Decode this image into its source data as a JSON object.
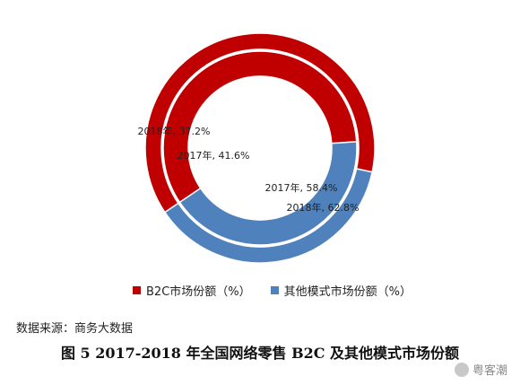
{
  "chart_data": {
    "type": "pie",
    "variant": "concentric-donut",
    "categories": [
      "B2C市场份额（%）",
      "其他模式市场份额（%）"
    ],
    "rings": [
      {
        "name": "2017",
        "position": "inner",
        "values": [
          58.4,
          41.6
        ],
        "labels": [
          "2017年, 58.4%",
          "2017年, 41.6%"
        ]
      },
      {
        "name": "2018",
        "position": "outer",
        "values": [
          62.8,
          37.2
        ],
        "labels": [
          "2018年, 62.8%",
          "2018年, 37.2%"
        ]
      }
    ],
    "colors": [
      "#c00000",
      "#4f81bd"
    ],
    "legend_position": "bottom"
  },
  "legend": {
    "b2c": "B2C市场份额（%）",
    "other": "其他模式市场份额（%）"
  },
  "source_text": "数据来源：商务大数据",
  "caption": "图 5 2017-2018 年全国网络零售 B2C 及其他模式市场份额",
  "watermark": {
    "text": "粤客潮",
    "icon": "wechat-icon"
  }
}
